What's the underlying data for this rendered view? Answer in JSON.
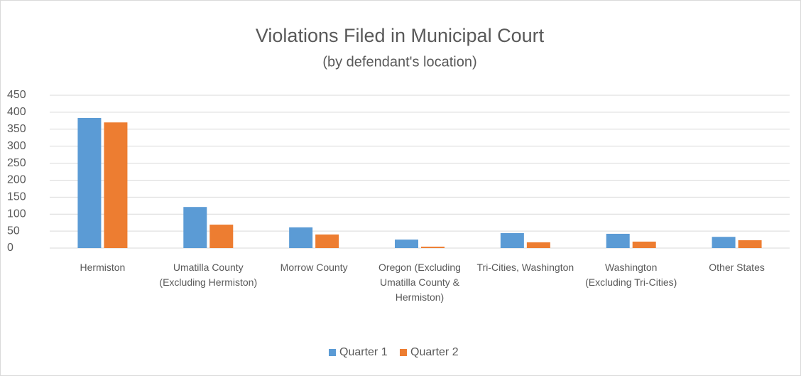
{
  "chart_data": {
    "type": "bar",
    "title": "Violations Filed in Municipal Court",
    "subtitle": "(by defendant's location)",
    "categories": [
      "Hermiston",
      "Umatilla County (Excluding Hermiston)",
      "Morrow County",
      "Oregon (Excluding Umatilla County & Hermiston)",
      "Tri-Cities, Washington",
      "Washington (Excluding Tri-Cities)",
      "Other States"
    ],
    "series": [
      {
        "name": "Quarter 1",
        "color": "#5b9bd5",
        "values": [
          383,
          121,
          61,
          25,
          44,
          42,
          33
        ]
      },
      {
        "name": "Quarter 2",
        "color": "#ed7d31",
        "values": [
          370,
          69,
          40,
          4,
          17,
          19,
          23
        ]
      }
    ],
    "ylim": [
      0,
      450
    ],
    "yticks": [
      0,
      50,
      100,
      150,
      200,
      250,
      300,
      350,
      400,
      450
    ],
    "grid": true,
    "legend": "bottom"
  }
}
